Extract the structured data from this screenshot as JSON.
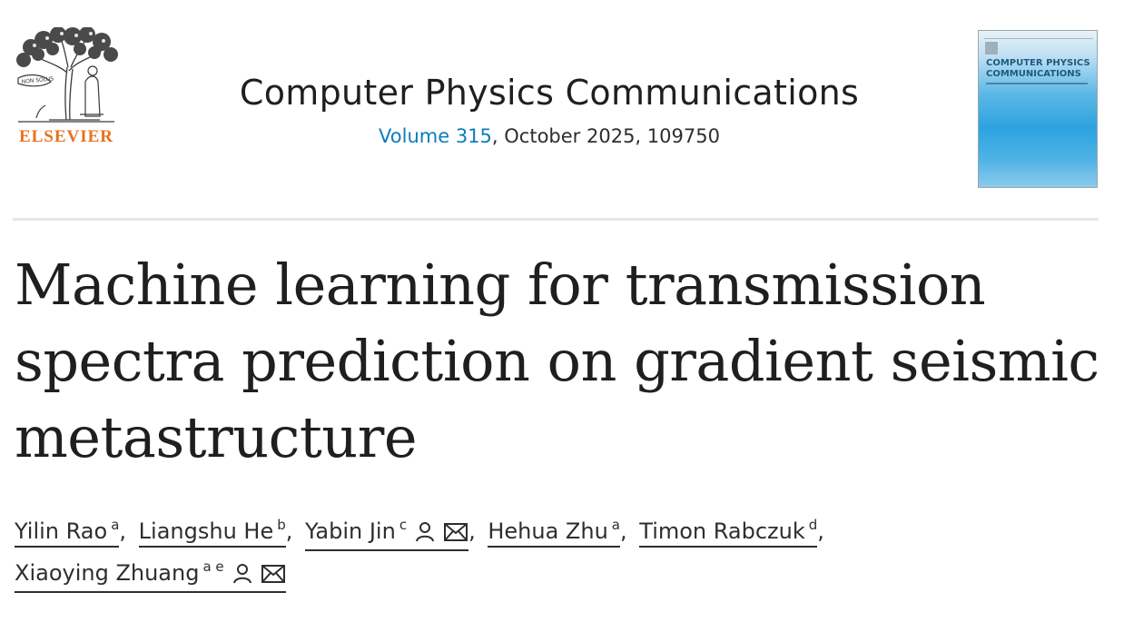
{
  "publisher": {
    "name": "ELSEVIER",
    "logo_icon": "elsevier-tree-logo"
  },
  "journal": {
    "title": "Computer Physics Communications",
    "volume_label": "Volume 315",
    "issue_rest": ", October 2025, 109750",
    "cover_title": "COMPUTER PHYSICS COMMUNICATIONS",
    "cover_icon": "journal-cover-image"
  },
  "article": {
    "title": "Machine learning for transmission spectra prediction on gradient seismic metastructure"
  },
  "authors": [
    {
      "name": "Yilin Rao",
      "affiliations": "a"
    },
    {
      "name": "Liangshu He",
      "affiliations": "b"
    },
    {
      "name": "Yabin Jin",
      "affiliations": "c",
      "icons": [
        "person-icon",
        "email-icon"
      ]
    },
    {
      "name": "Hehua Zhu",
      "affiliations": "a"
    },
    {
      "name": "Timon Rabczuk",
      "affiliations": "d"
    },
    {
      "name": "Xiaoying Zhuang",
      "affiliations": "a e",
      "icons": [
        "person-icon",
        "email-icon"
      ]
    }
  ],
  "colors": {
    "link": "#0c7dbb",
    "publisher": "#e9711c",
    "text": "#1f1f1f"
  }
}
